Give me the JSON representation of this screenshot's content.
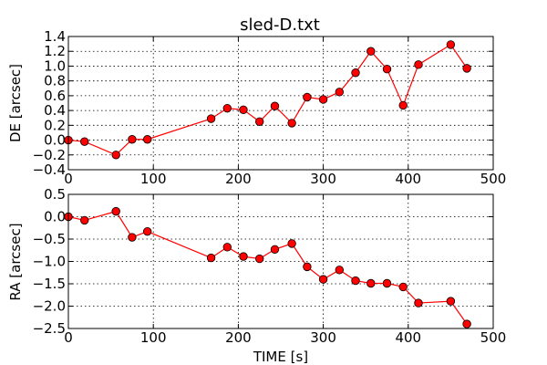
{
  "chart_data": [
    {
      "type": "line",
      "title": "sled-D.txt",
      "xlabel": "",
      "ylabel": "DE [arcsec]",
      "xlim": [
        0,
        500
      ],
      "ylim": [
        -0.4,
        1.4
      ],
      "xticks": [
        "0",
        "100",
        "200",
        "300",
        "400",
        "500"
      ],
      "yticks": [
        "−0.4",
        "−0.2",
        "0.0",
        "0.2",
        "0.4",
        "0.6",
        "0.8",
        "1.0",
        "1.2",
        "1.4"
      ],
      "grid": true,
      "line_color": "#ff0000",
      "marker": "circle",
      "x": [
        0,
        19,
        56,
        75,
        93,
        168,
        187,
        206,
        225,
        243,
        263,
        281,
        300,
        319,
        338,
        356,
        375,
        394,
        412,
        450,
        469
      ],
      "y": [
        0.0,
        -0.02,
        -0.2,
        0.01,
        0.01,
        0.29,
        0.43,
        0.41,
        0.25,
        0.46,
        0.23,
        0.58,
        0.55,
        0.65,
        0.91,
        1.2,
        0.96,
        0.47,
        1.02,
        1.29,
        0.97
      ]
    },
    {
      "type": "line",
      "title": "",
      "xlabel": "TIME [s]",
      "ylabel": "RA [arcsec]",
      "xlim": [
        0,
        500
      ],
      "ylim": [
        -2.5,
        0.5
      ],
      "xticks": [
        "0",
        "100",
        "200",
        "300",
        "400",
        "500"
      ],
      "yticks": [
        "−2.5",
        "−2.0",
        "−1.5",
        "−1.0",
        "−0.5",
        "0.0",
        "0.5"
      ],
      "grid": true,
      "line_color": "#ff0000",
      "marker": "circle",
      "x": [
        0,
        19,
        56,
        75,
        93,
        168,
        187,
        206,
        225,
        243,
        263,
        281,
        300,
        319,
        338,
        356,
        375,
        394,
        412,
        450,
        469
      ],
      "y": [
        0.0,
        -0.08,
        0.12,
        -0.46,
        -0.33,
        -0.92,
        -0.68,
        -0.89,
        -0.94,
        -0.73,
        -0.6,
        -1.12,
        -1.4,
        -1.19,
        -1.43,
        -1.49,
        -1.49,
        -1.57,
        -1.93,
        -1.89,
        -2.4
      ]
    }
  ]
}
